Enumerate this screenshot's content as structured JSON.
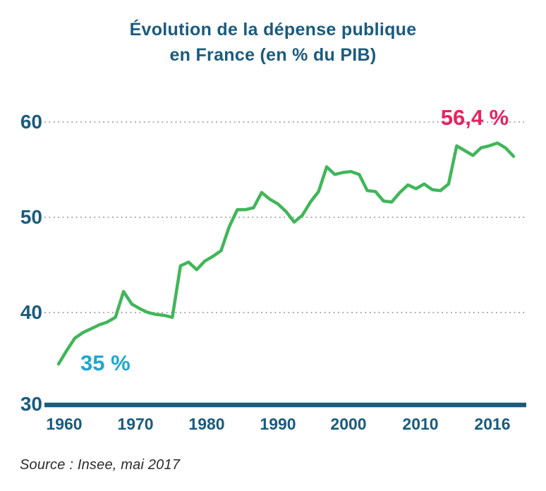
{
  "title": {
    "line1": "Évolution de la dépense publique",
    "line2": "en France (en % du PIB)"
  },
  "source": "Source : Insee, mai 2017",
  "colors": {
    "title_blue": "#1a5b7d",
    "axis_blue": "#1a5b7d",
    "line_green": "#41b65a",
    "annotation_start_cyan": "#1da7cd",
    "annotation_end_pink": "#e5245f",
    "gridline_gray": "#9b9b9b",
    "source_text": "#2b2b2b",
    "background": "#ffffff"
  },
  "chart_data": {
    "type": "line",
    "title": "Évolution de la dépense publique en France (en % du PIB)",
    "xlabel": "",
    "ylabel": "",
    "x_range": [
      1960,
      2016
    ],
    "x_step": 1,
    "ylim": [
      30,
      62
    ],
    "grid": "horizontal dotted",
    "grid_values": [
      60,
      50,
      40
    ],
    "y_ticks": [
      "60",
      "50",
      "40",
      "30"
    ],
    "y_tick_values": [
      60,
      50,
      40,
      30
    ],
    "x_ticks": [
      "1960",
      "1970",
      "1980",
      "1990",
      "2000",
      "2010",
      "2016"
    ],
    "series": [
      {
        "name": "Dépense publique (% du PIB)",
        "values": [
          34.6,
          36.0,
          37.3,
          37.9,
          38.3,
          38.7,
          39.0,
          39.5,
          42.2,
          40.9,
          40.4,
          40.0,
          39.8,
          39.7,
          39.5,
          44.9,
          45.3,
          44.5,
          45.4,
          45.9,
          46.5,
          49.0,
          50.8,
          50.8,
          51.0,
          52.6,
          51.9,
          51.4,
          50.6,
          49.5,
          50.2,
          51.6,
          52.7,
          55.3,
          54.5,
          54.7,
          54.8,
          54.5,
          52.8,
          52.7,
          51.7,
          51.6,
          52.6,
          53.4,
          53.0,
          53.5,
          52.9,
          52.8,
          53.5,
          57.5,
          57.0,
          56.5,
          57.3,
          57.5,
          57.8,
          57.3,
          56.4
        ]
      }
    ],
    "annotations": [
      {
        "text": "35 %",
        "year": 1960,
        "value": 34.6,
        "color": "#1da7cd"
      },
      {
        "text": "56,4 %",
        "year": 2016,
        "value": 56.4,
        "color": "#e5245f"
      }
    ],
    "legend": "none"
  }
}
